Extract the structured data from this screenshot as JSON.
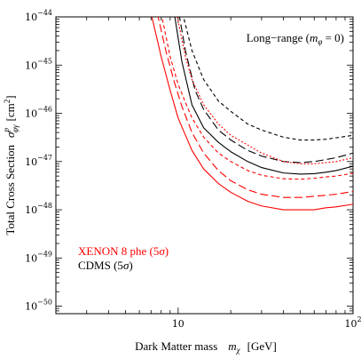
{
  "chart_data": {
    "type": "line",
    "title": "",
    "xlabel": "Dark Matter mass",
    "xlabel_symbol": "m",
    "xlabel_sub": "χ",
    "xlabel_unit": "[GeV]",
    "ylabel": "Total Cross Section",
    "ylabel_symbol": "σ",
    "ylabel_sup": "p",
    "ylabel_sub": "φγ",
    "ylabel_unit": "[cm",
    "ylabel_unit_sup": "2",
    "ylabel_unit_close": "]",
    "x_scale": "log",
    "y_scale": "log",
    "xlim": [
      2,
      100
    ],
    "ylim": [
      7e-51,
      1e-44
    ],
    "x_ticks": [
      {
        "value": 10,
        "label": "10",
        "sup": ""
      },
      {
        "value": 100,
        "label": "10",
        "sup": "2"
      }
    ],
    "y_ticks": [
      {
        "value": 1e-50,
        "base": "10",
        "exp": "−50"
      },
      {
        "value": 1e-49,
        "base": "10",
        "exp": "−49"
      },
      {
        "value": 1e-48,
        "base": "10",
        "exp": "−48"
      },
      {
        "value": 1e-47,
        "base": "10",
        "exp": "−47"
      },
      {
        "value": 1e-46,
        "base": "10",
        "exp": "−46"
      },
      {
        "value": 1e-45,
        "base": "10",
        "exp": "−45"
      },
      {
        "value": 1e-44,
        "base": "10",
        "exp": "−44"
      }
    ],
    "annotation": {
      "prefix": "Long−range (",
      "symbol": "m",
      "sub": "φ",
      "suffix": " = 0)"
    },
    "legend": {
      "placement": "bottom-left",
      "entries": [
        {
          "label": "XENON 8 phe (5",
          "sym": "σ",
          "close": ")",
          "color": "#ff0000"
        },
        {
          "label": "CDMS (5",
          "sym": "σ",
          "close": ")",
          "color": "#000000"
        }
      ]
    },
    "series": [
      {
        "color": "#000000",
        "dash": "",
        "x": [
          9.5,
          10.5,
          12,
          14,
          17,
          20,
          25,
          30,
          40,
          50,
          60,
          70,
          80,
          100
        ],
        "y": [
          1.2e-44,
          1.2e-45,
          1.5e-46,
          5e-47,
          2.5e-47,
          1.6e-47,
          1e-47,
          7.5e-48,
          5.8e-48,
          5.5e-48,
          5.6e-48,
          6e-48,
          6.5e-48,
          8e-48
        ]
      },
      {
        "color": "#000000",
        "dash": "9,4",
        "x": [
          10.1,
          11,
          12.5,
          14,
          17,
          20,
          25,
          30,
          40,
          50,
          60,
          70,
          80,
          100
        ],
        "y": [
          1.2e-44,
          2e-45,
          3e-46,
          1.2e-46,
          4.5e-47,
          2.8e-47,
          1.7e-47,
          1.3e-47,
          1e-47,
          9.5e-48,
          1e-47,
          1.1e-47,
          1.2e-47,
          1.5e-47
        ]
      },
      {
        "color": "#000000",
        "dash": "4,3",
        "x": [
          10.6,
          12,
          14,
          17,
          20,
          25,
          30,
          40,
          50,
          60,
          70,
          80,
          100
        ],
        "y": [
          1.2e-44,
          2e-45,
          5e-46,
          1.8e-46,
          1.1e-46,
          6e-47,
          4.5e-47,
          3.2e-47,
          2.8e-47,
          2.8e-47,
          2.9e-47,
          3.1e-47,
          3.5e-47
        ]
      },
      {
        "color": "#ff0000",
        "dash": "",
        "x": [
          7,
          8,
          9,
          10,
          12,
          14,
          17,
          20,
          25,
          30,
          40,
          50,
          60,
          70,
          80,
          100
        ],
        "y": [
          1.2e-44,
          1.5e-45,
          3e-46,
          8e-47,
          1.7e-47,
          7e-48,
          3.5e-48,
          2.3e-48,
          1.5e-48,
          1.2e-48,
          1e-48,
          1e-48,
          1e-48,
          1.1e-48,
          1.15e-48,
          1.3e-48
        ]
      },
      {
        "color": "#ff0000",
        "dash": "9,4",
        "x": [
          7.6,
          8.5,
          9.5,
          10.5,
          12,
          14,
          17,
          20,
          25,
          30,
          40,
          50,
          60,
          70,
          80,
          100
        ],
        "y": [
          1.2e-44,
          2e-45,
          4.5e-46,
          1.4e-46,
          4e-47,
          1.5e-47,
          6.5e-48,
          4e-48,
          2.6e-48,
          2.1e-48,
          1.8e-48,
          1.8e-48,
          1.9e-48,
          2e-48,
          2.1e-48,
          2.4e-48
        ]
      },
      {
        "color": "#ff0000",
        "dash": "4,3",
        "x": [
          8,
          9,
          10,
          11,
          12,
          14,
          17,
          20,
          25,
          30,
          40,
          50,
          60,
          70,
          80,
          100
        ],
        "y": [
          1.2e-44,
          1.5e-45,
          4e-46,
          1.7e-46,
          8e-47,
          3.2e-47,
          1.5e-47,
          1e-47,
          6.5e-48,
          5.2e-48,
          4.4e-48,
          4.3e-48,
          4.5e-48,
          4.8e-48,
          5e-48,
          5.7e-48
        ]
      },
      {
        "color": "#ff0000",
        "dash": "2,2",
        "x": [
          9.8,
          11,
          12,
          14,
          17,
          20,
          25,
          30,
          40,
          50,
          60,
          70,
          80,
          100
        ],
        "y": [
          1.2e-44,
          1.5e-45,
          5e-46,
          1.5e-46,
          6e-47,
          3.5e-47,
          2.2e-47,
          1.5e-47,
          1e-47,
          9e-48,
          9e-48,
          9.5e-48,
          1e-47,
          1.2e-47
        ]
      }
    ]
  }
}
